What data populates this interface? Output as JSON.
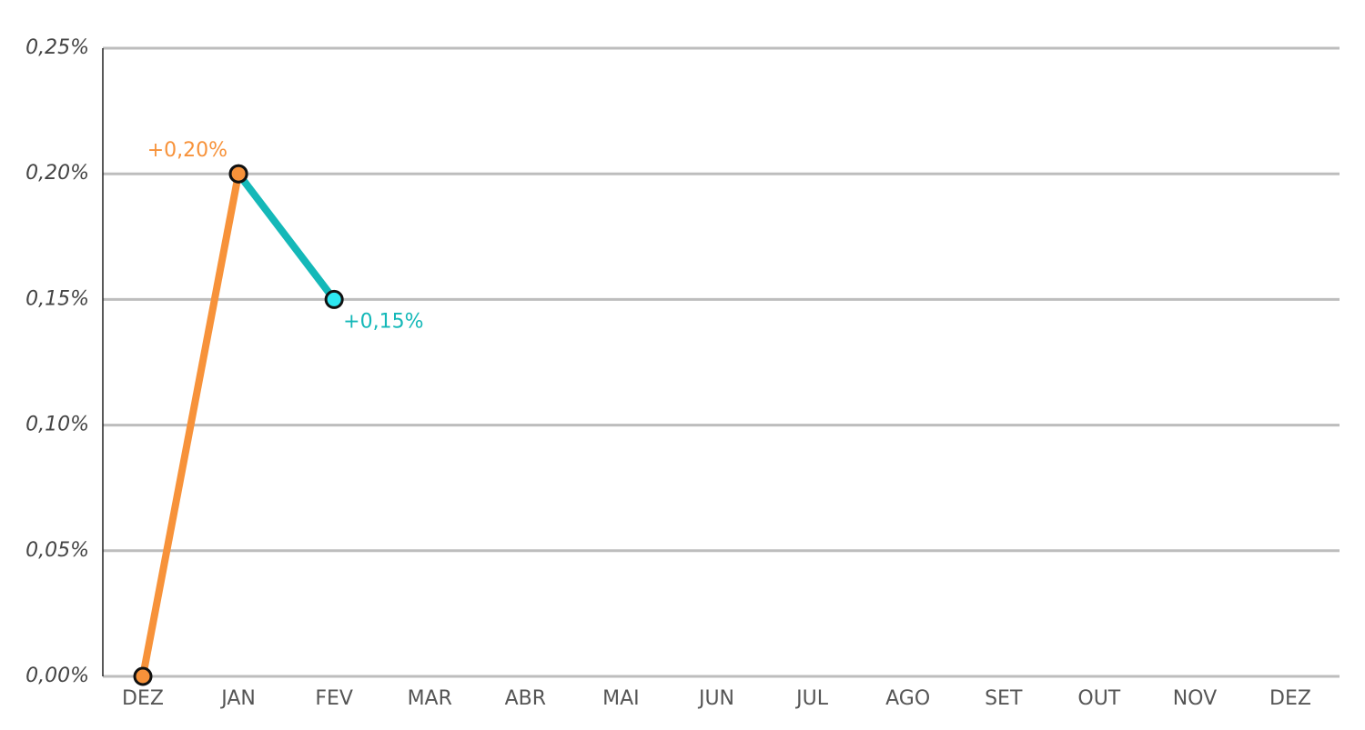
{
  "chart_data": {
    "type": "line",
    "categories": [
      "DEZ",
      "JAN",
      "FEV",
      "MAR",
      "ABR",
      "MAI",
      "JUN",
      "JUL",
      "AGO",
      "SET",
      "OUT",
      "NOV",
      "DEZ"
    ],
    "series": [
      {
        "color": "#f7923a",
        "marker_fill": "#f7923a",
        "values": [
          0,
          0.2,
          null,
          null,
          null,
          null,
          null,
          null,
          null,
          null,
          null,
          null,
          null
        ],
        "value_labels": [
          null,
          "+0,20%",
          null,
          null,
          null,
          null,
          null,
          null,
          null,
          null,
          null,
          null,
          null
        ]
      },
      {
        "color": "#14b8b8",
        "marker_fill": "#2ee8f2",
        "values": [
          null,
          0.2,
          0.15,
          null,
          null,
          null,
          null,
          null,
          null,
          null,
          null,
          null,
          null
        ],
        "value_labels": [
          null,
          null,
          "+0,15%",
          null,
          null,
          null,
          null,
          null,
          null,
          null,
          null,
          null,
          null
        ]
      }
    ],
    "ylim": [
      0,
      0.25
    ],
    "yticks": [
      {
        "value": 0,
        "label": "0,00%"
      },
      {
        "value": 0.05,
        "label": "0,05%"
      },
      {
        "value": 0.1,
        "label": "0,10%"
      },
      {
        "value": 0.15,
        "label": "0,15%"
      },
      {
        "value": 0.2,
        "label": "0,20%"
      },
      {
        "value": 0.25,
        "label": "0,25%"
      }
    ],
    "grid": true
  }
}
